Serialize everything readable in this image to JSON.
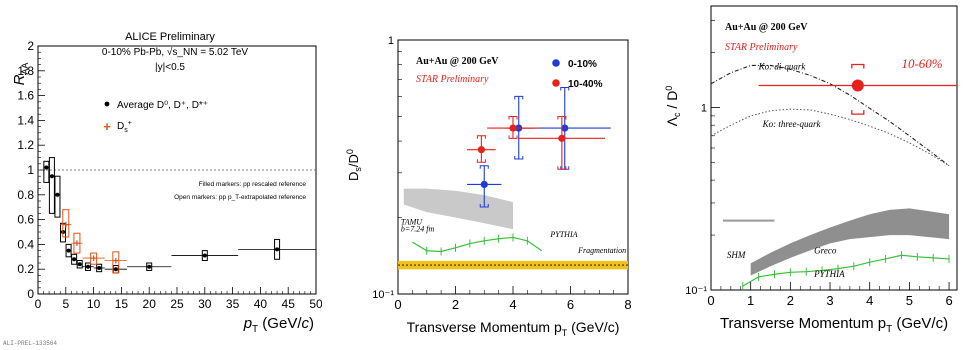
{
  "colors": {
    "black": "#000000",
    "orange": "#e0541b",
    "red": "#e8211b",
    "blue": "#1f3bd8",
    "green": "#3bbf3b",
    "yellow": "#f2c21a",
    "gray": "#9a9a9a"
  },
  "footer_text": "ALI-PREL-133564",
  "chart_data": [
    {
      "type": "scatter",
      "title": "ALICE Preliminary",
      "subtitle_lines": [
        "0-10% Pb-Pb, √s_NN = 5.02 TeV",
        "|y|<0.5"
      ],
      "xlabel": "p_T (GeV/c)",
      "ylabel": "R_AA",
      "xlim": [
        0,
        50
      ],
      "ylim": [
        0,
        2
      ],
      "x_ticks": [
        "0",
        "5",
        "10",
        "15",
        "20",
        "25",
        "30",
        "35",
        "40",
        "45",
        "50"
      ],
      "y_ticks": [
        "0",
        "0.2",
        "0.4",
        "0.6",
        "0.8",
        "1",
        "1.2",
        "1.4",
        "1.6",
        "1.8",
        "2"
      ],
      "reference_line": 1.0,
      "notes": [
        "Filled markers: pp rescaled reference",
        "Open markers: pp p_T-extrapolated reference"
      ],
      "series": [
        {
          "name": "Average D⁰, D⁺, D*⁺",
          "color": "#000000",
          "x": [
            1.5,
            2.5,
            3.5,
            4.5,
            5.5,
            6.5,
            7.5,
            9,
            11,
            14,
            20,
            30,
            43
          ],
          "y": [
            1.02,
            0.95,
            0.8,
            0.5,
            0.35,
            0.28,
            0.24,
            0.22,
            0.21,
            0.2,
            0.22,
            0.31,
            0.36
          ],
          "xerr": [
            0.5,
            0.5,
            0.5,
            0.5,
            0.5,
            0.5,
            0.5,
            1,
            1,
            2,
            4,
            6,
            7
          ],
          "syst_lo": [
            0.9,
            0.65,
            0.62,
            0.42,
            0.3,
            0.24,
            0.21,
            0.19,
            0.18,
            0.17,
            0.19,
            0.27,
            0.28
          ],
          "syst_hi": [
            1.07,
            1.1,
            0.95,
            0.57,
            0.4,
            0.32,
            0.27,
            0.25,
            0.24,
            0.23,
            0.25,
            0.35,
            0.44
          ]
        },
        {
          "name": "D_s⁺",
          "color": "#e0541b",
          "x": [
            5,
            7,
            10,
            14
          ],
          "y": [
            0.56,
            0.41,
            0.29,
            0.27
          ],
          "xerr": [
            1,
            1,
            2,
            2
          ],
          "syst_lo": [
            0.46,
            0.33,
            0.24,
            0.17
          ],
          "syst_hi": [
            0.68,
            0.49,
            0.33,
            0.34
          ]
        }
      ]
    },
    {
      "type": "scatter",
      "title": "Au+Au @ 200 GeV",
      "subtitle": "STAR Preliminary",
      "xlabel": "Transverse Momentum p_T (GeV/c)",
      "ylabel": "D_s/D⁰",
      "xlim": [
        0,
        8
      ],
      "ylim": [
        0.1,
        1
      ],
      "yscale": "log",
      "x_ticks": [
        "0",
        "2",
        "4",
        "6",
        "8"
      ],
      "y_ticks": [
        "10⁻¹",
        "1"
      ],
      "series": [
        {
          "name": "0-10%",
          "color": "#1f3bd8",
          "x": [
            3.0,
            4.2,
            5.8
          ],
          "y": [
            0.27,
            0.45,
            0.45
          ],
          "xerr": [
            0.6,
            0.5,
            1.6
          ],
          "yerr_lo": [
            0.22,
            0.34,
            0.31
          ],
          "yerr_hi": [
            0.32,
            0.6,
            0.65
          ]
        },
        {
          "name": "10-40%",
          "color": "#e8211b",
          "x": [
            2.9,
            4.0,
            5.7
          ],
          "y": [
            0.37,
            0.45,
            0.41
          ],
          "xerr": [
            0.5,
            0.9,
            1.5
          ],
          "yerr_lo": [
            0.33,
            0.41,
            0.31
          ],
          "yerr_hi": [
            0.42,
            0.5,
            0.5
          ]
        }
      ],
      "models": [
        {
          "name": "TAMU",
          "note": "b=7.24 fm",
          "color": "#999999",
          "x": [
            0.2,
            1.0,
            2.0,
            3.0,
            4.0
          ],
          "y_lo": [
            0.225,
            0.21,
            0.2,
            0.19,
            0.18
          ],
          "y_hi": [
            0.26,
            0.26,
            0.255,
            0.245,
            0.23
          ]
        },
        {
          "name": "PYTHIA",
          "color": "#3bbf3b",
          "x": [
            0.5,
            1.0,
            1.5,
            2.0,
            2.5,
            3.0,
            3.5,
            4.0,
            4.5,
            5.0
          ],
          "y": [
            0.16,
            0.148,
            0.147,
            0.152,
            0.158,
            0.162,
            0.165,
            0.167,
            0.162,
            0.148
          ]
        },
        {
          "name": "Fragmentation",
          "color": "#f2c21a",
          "y": 0.13,
          "band": [
            0.125,
            0.135
          ]
        }
      ]
    },
    {
      "type": "scatter",
      "title": "Au+Au @ 200 GeV",
      "subtitle": "STAR Preliminary",
      "xlabel": "Transverse Momentum p_T (GeV/c)",
      "ylabel": "Λ_c / D⁰",
      "xlim": [
        0,
        6.2
      ],
      "ylim": [
        0.1,
        3.6
      ],
      "yscale": "log",
      "x_ticks": [
        "0",
        "1",
        "2",
        "3",
        "4",
        "5",
        "6"
      ],
      "y_ticks": [
        "10⁻¹",
        "1"
      ],
      "series": [
        {
          "name": "10-60%",
          "color": "#e8211b",
          "x": [
            3.7
          ],
          "y": [
            1.32
          ],
          "xerr": [
            2.5
          ],
          "yerr": [
            0.4
          ]
        }
      ],
      "models": [
        {
          "name": "Ko: di-quark",
          "color": "#222222",
          "x": [
            0,
            0.5,
            1.0,
            1.5,
            2.0,
            2.5,
            3.0,
            3.5,
            4.0,
            4.5,
            5.0,
            5.5,
            6.0
          ],
          "y": [
            1.35,
            1.55,
            1.7,
            1.7,
            1.62,
            1.5,
            1.35,
            1.17,
            0.99,
            0.84,
            0.7,
            0.58,
            0.48
          ]
        },
        {
          "name": "Ko: three-quark",
          "color": "#555555",
          "x": [
            0,
            0.5,
            1.0,
            1.5,
            2.0,
            2.5,
            3.0,
            3.5,
            4.0,
            4.5,
            5.0,
            5.5,
            6.0
          ],
          "y": [
            0.7,
            0.8,
            0.9,
            0.96,
            0.98,
            0.97,
            0.92,
            0.86,
            0.79,
            0.72,
            0.64,
            0.56,
            0.48
          ]
        },
        {
          "name": "SHM",
          "color": "#999999",
          "x": [
            0.3,
            1.6
          ],
          "y": 0.24
        },
        {
          "name": "Greco",
          "color": "#999999",
          "x": [
            1.0,
            1.5,
            2.0,
            2.5,
            3.0,
            3.5,
            4.0,
            4.5,
            5.0,
            5.5,
            6.0
          ],
          "y_lo": [
            0.12,
            0.135,
            0.15,
            0.165,
            0.18,
            0.19,
            0.195,
            0.2,
            0.2,
            0.195,
            0.19
          ],
          "y_hi": [
            0.14,
            0.16,
            0.18,
            0.2,
            0.22,
            0.24,
            0.26,
            0.275,
            0.28,
            0.27,
            0.26
          ]
        },
        {
          "name": "PYTHIA",
          "color": "#3bbf3b",
          "x": [
            0.8,
            1.2,
            1.6,
            2.0,
            2.4,
            2.8,
            3.2,
            3.6,
            4.0,
            4.4,
            4.8,
            5.2,
            5.6,
            6.0
          ],
          "y": [
            0.105,
            0.118,
            0.122,
            0.125,
            0.126,
            0.128,
            0.131,
            0.135,
            0.142,
            0.148,
            0.155,
            0.152,
            0.15,
            0.148
          ]
        }
      ]
    }
  ]
}
